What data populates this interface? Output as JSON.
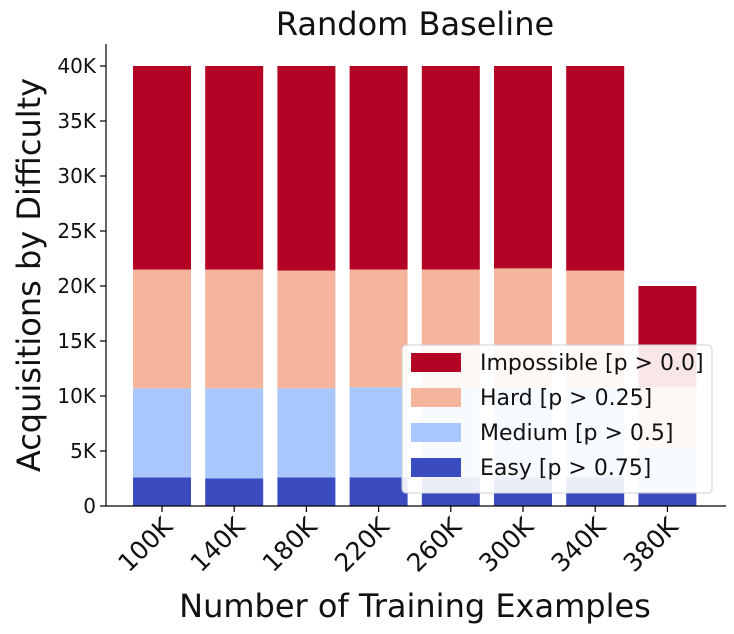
{
  "chart_data": {
    "type": "bar",
    "stacked": true,
    "title": "Random Baseline",
    "xlabel": "Number of Training Examples",
    "ylabel": "Acquisitions by Difficulty",
    "categories": [
      "100K",
      "140K",
      "180K",
      "220K",
      "260K",
      "300K",
      "340K",
      "380K"
    ],
    "ylim": [
      0,
      42000
    ],
    "yticks": [
      0,
      5000,
      10000,
      15000,
      20000,
      25000,
      30000,
      35000,
      40000
    ],
    "ytick_labels": [
      "0",
      "5K",
      "10K",
      "15K",
      "20K",
      "25K",
      "30K",
      "35K",
      "40K"
    ],
    "series": [
      {
        "name": "Easy [p > 0.75]",
        "color": "#3b4cc0",
        "values": [
          2600,
          2500,
          2600,
          2600,
          2600,
          2600,
          2600,
          1300
        ]
      },
      {
        "name": "Medium [p > 0.5]",
        "color": "#aac7fd",
        "values": [
          8100,
          8200,
          8100,
          8200,
          8100,
          8100,
          8100,
          4100
        ]
      },
      {
        "name": "Hard [p > 0.25]",
        "color": "#f4b59c",
        "values": [
          10800,
          10800,
          10700,
          10700,
          10800,
          10900,
          10700,
          5400
        ]
      },
      {
        "name": "Impossible [p > 0.0]",
        "color": "#b40426",
        "values": [
          18500,
          18500,
          18600,
          18500,
          18500,
          18400,
          18600,
          9200
        ]
      }
    ],
    "legend": {
      "position": "bottom-right",
      "order": [
        "Impossible [p > 0.0]",
        "Hard [p > 0.25]",
        "Medium [p > 0.5]",
        "Easy [p > 0.75]"
      ]
    },
    "grid": false
  }
}
